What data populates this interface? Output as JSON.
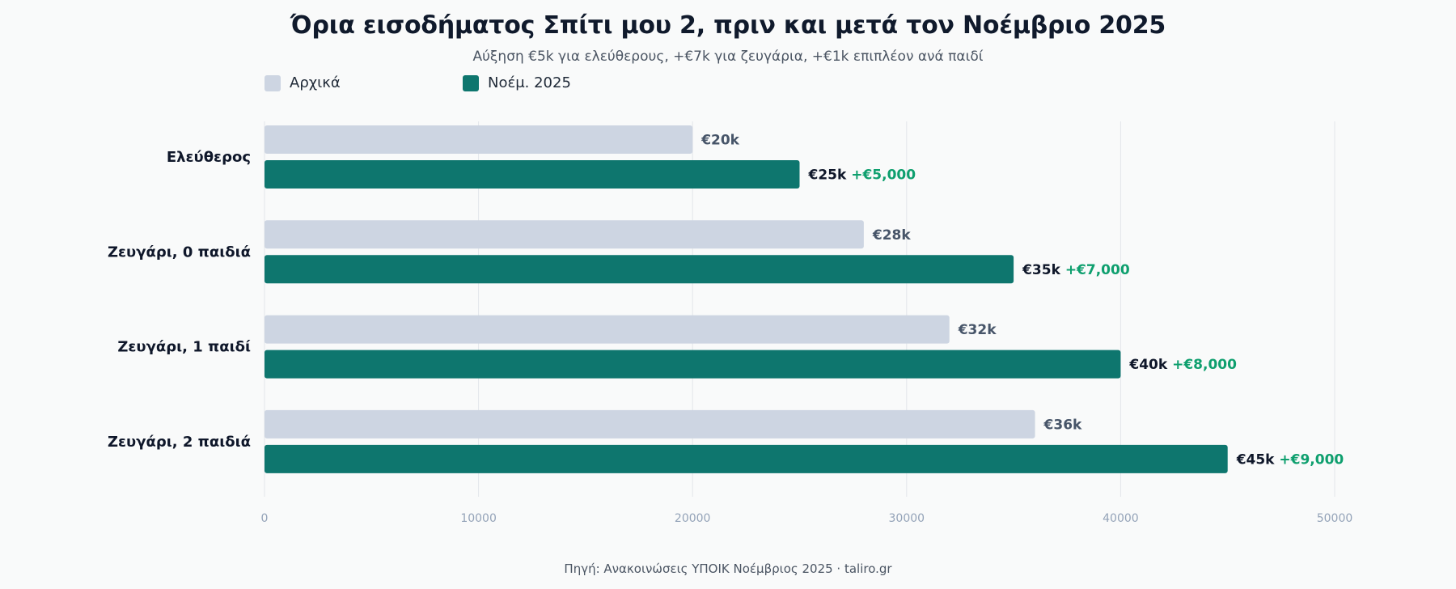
{
  "colors": {
    "original": "#cdd5e2",
    "updated": "#0e766e",
    "increase": "#0e9f6e",
    "grid": "#e3e6ea",
    "category_text": "#0f172a",
    "tick_text": "#94a3b8",
    "value_original_text": "#475569",
    "value_updated_text": "#0f172a"
  },
  "chart_data": {
    "type": "bar",
    "orientation": "horizontal",
    "title": "Όρια εισοδήματος Σπίτι μου 2, πριν και μετά τον Νοέμβριο 2025",
    "subtitle": "Αύξηση €5k για ελεύθερους, +€7k για ζευγάρια, +€1k επιπλέον ανά παιδί",
    "source": "Πηγή: Ανακοινώσεις ΥΠΟΙΚ Νοέμβριος 2025 · taliro.gr",
    "categories": [
      "Ελεύθερος",
      "Ζευγάρι, 0 παιδιά",
      "Ζευγάρι, 1 παιδί",
      "Ζευγάρι, 2 παιδιά"
    ],
    "series": [
      {
        "name": "Αρχικά",
        "values": [
          20000,
          28000,
          32000,
          36000
        ],
        "labels": [
          "€20k",
          "€28k",
          "€32k",
          "€36k"
        ]
      },
      {
        "name": "Νοέμ. 2025",
        "values": [
          25000,
          35000,
          40000,
          45000
        ],
        "labels": [
          "€25k",
          "€35k",
          "€40k",
          "€45k"
        ],
        "increase_labels": [
          "+€5,000",
          "+€7,000",
          "+€8,000",
          "+€9,000"
        ]
      }
    ],
    "xlim": [
      0,
      50000
    ],
    "xticks": [
      0,
      10000,
      20000,
      30000,
      40000,
      50000
    ],
    "xtick_labels": [
      "0",
      "10000",
      "20000",
      "30000",
      "40000",
      "50000"
    ],
    "grid": true,
    "legend_position": "top-left"
  }
}
